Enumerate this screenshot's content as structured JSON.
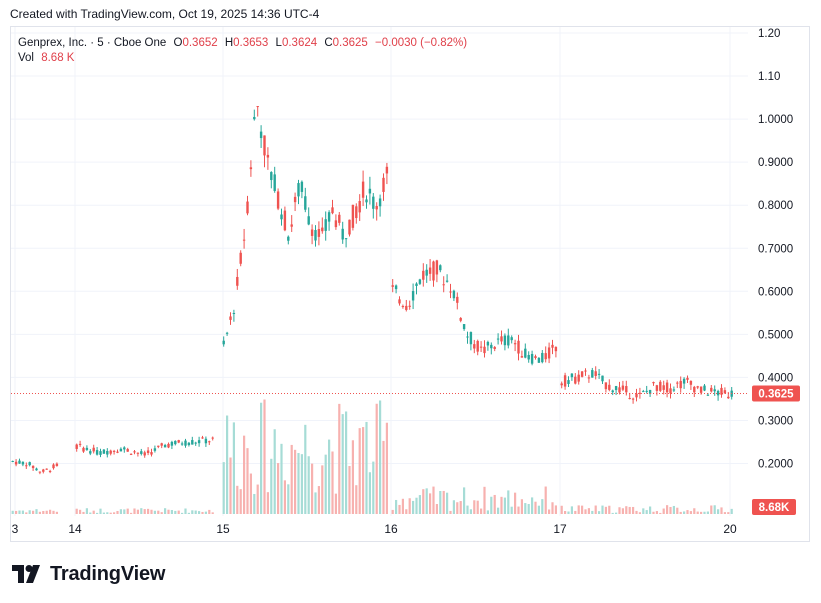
{
  "header": {
    "created_with": "Created with TradingView.com, Oct 19, 2025 14:36 UTC-4"
  },
  "legend": {
    "symbol": "Genprex, Inc. · 5 · Cboe One",
    "o_label": "O",
    "o_value": "0.3652",
    "h_label": "H",
    "h_value": "0.3653",
    "l_label": "L",
    "l_value": "0.3624",
    "c_label": "C",
    "c_value": "0.3625",
    "change": "−0.0030 (−0.82%)",
    "vol_label": "Vol",
    "vol_value": "8.68 K"
  },
  "brand": {
    "logo_text": "TradingView"
  },
  "colors": {
    "up": "#26a69a",
    "down": "#ef5350",
    "grid": "#f0f3fa",
    "text": "#131722",
    "price_line": "#ef5350"
  },
  "chart_data": {
    "type": "candlestick",
    "price_axis": {
      "ticks": [
        "1.20",
        "1.10",
        "1.0000",
        "0.9000",
        "0.8000",
        "0.7000",
        "0.6000",
        "0.5000",
        "0.4000",
        "0.3000",
        "0.2000"
      ],
      "min": 0.12,
      "max": 1.2
    },
    "time_axis": {
      "labels": [
        "3",
        "14",
        "15",
        "16",
        "17",
        "20"
      ]
    },
    "last_price": "0.3625",
    "volume_label": "8.68K",
    "grid": true,
    "series": [
      {
        "name": "price",
        "points": [
          {
            "x": "Oct 13",
            "y": 0.205
          },
          {
            "x": "Oct 13",
            "y": 0.2
          },
          {
            "x": "Oct 13",
            "y": 0.18
          },
          {
            "x": "Oct 13",
            "y": 0.195
          },
          {
            "x": "Oct 14",
            "y": 0.24
          },
          {
            "x": "Oct 14",
            "y": 0.225
          },
          {
            "x": "Oct 14",
            "y": 0.235
          },
          {
            "x": "Oct 14",
            "y": 0.22
          },
          {
            "x": "Oct 14",
            "y": 0.245
          },
          {
            "x": "Oct 14",
            "y": 0.25
          },
          {
            "x": "Oct 14",
            "y": 0.255
          },
          {
            "x": "Oct 15",
            "y": 0.47
          },
          {
            "x": "Oct 15",
            "y": 0.57
          },
          {
            "x": "Oct 15",
            "y": 0.75
          },
          {
            "x": "Oct 15",
            "y": 1.05
          },
          {
            "x": "Oct 15",
            "y": 0.9
          },
          {
            "x": "Oct 15",
            "y": 0.82
          },
          {
            "x": "Oct 15",
            "y": 0.73
          },
          {
            "x": "Oct 15",
            "y": 0.85
          },
          {
            "x": "Oct 15",
            "y": 0.76
          },
          {
            "x": "Oct 15",
            "y": 0.72
          },
          {
            "x": "Oct 15",
            "y": 0.79
          },
          {
            "x": "Oct 15",
            "y": 0.73
          },
          {
            "x": "Oct 15",
            "y": 0.78
          },
          {
            "x": "Oct 15",
            "y": 0.84
          },
          {
            "x": "Oct 15",
            "y": 0.8
          },
          {
            "x": "Oct 15",
            "y": 0.87
          },
          {
            "x": "Oct 16",
            "y": 0.6
          },
          {
            "x": "Oct 16",
            "y": 0.57
          },
          {
            "x": "Oct 16",
            "y": 0.64
          },
          {
            "x": "Oct 16",
            "y": 0.65
          },
          {
            "x": "Oct 16",
            "y": 0.61
          },
          {
            "x": "Oct 16",
            "y": 0.5
          },
          {
            "x": "Oct 16",
            "y": 0.46
          },
          {
            "x": "Oct 16",
            "y": 0.48
          },
          {
            "x": "Oct 16",
            "y": 0.49
          },
          {
            "x": "Oct 16",
            "y": 0.45
          },
          {
            "x": "Oct 16",
            "y": 0.44
          },
          {
            "x": "Oct 16",
            "y": 0.47
          },
          {
            "x": "Oct 17",
            "y": 0.39
          },
          {
            "x": "Oct 17",
            "y": 0.4
          },
          {
            "x": "Oct 17",
            "y": 0.41
          },
          {
            "x": "Oct 17",
            "y": 0.38
          },
          {
            "x": "Oct 17",
            "y": 0.37
          },
          {
            "x": "Oct 17",
            "y": 0.355
          },
          {
            "x": "Oct 17",
            "y": 0.38
          },
          {
            "x": "Oct 17",
            "y": 0.375
          },
          {
            "x": "Oct 17",
            "y": 0.39
          },
          {
            "x": "Oct 17",
            "y": 0.37
          },
          {
            "x": "Oct 17",
            "y": 0.365
          },
          {
            "x": "Oct 17",
            "y": 0.3625
          }
        ]
      }
    ]
  }
}
